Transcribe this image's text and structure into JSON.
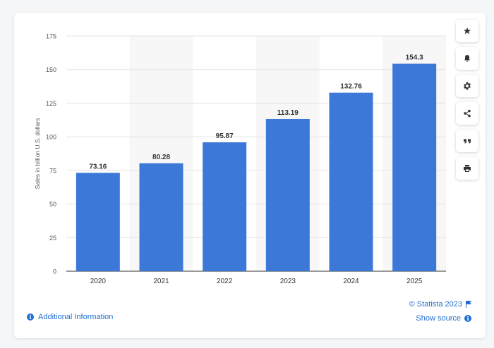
{
  "chart_data": {
    "type": "bar",
    "categories": [
      "2020",
      "2021",
      "2022",
      "2023",
      "2024",
      "2025"
    ],
    "values": [
      73.16,
      80.28,
      95.87,
      113.19,
      132.76,
      154.3
    ],
    "value_labels": [
      "73.16",
      "80.28",
      "95.87",
      "113.19",
      "132.76",
      "154.3"
    ],
    "title": "",
    "xlabel": "",
    "ylabel": "Sales in billion U.S. dollars",
    "ylim": [
      0,
      175
    ],
    "yticks": [
      0,
      25,
      50,
      75,
      100,
      125,
      150,
      175
    ],
    "grid": true,
    "bar_color": "#3b78d8",
    "band_color": "#f7f7f7"
  },
  "toolbar": {
    "icons": [
      "star-icon",
      "bell-icon",
      "gear-icon",
      "share-icon",
      "quote-icon",
      "print-icon"
    ]
  },
  "footer": {
    "additional_info": "Additional Information",
    "copyright": "© Statista 2023",
    "show_source": "Show source"
  },
  "colors": {
    "link": "#1f6fd0"
  }
}
